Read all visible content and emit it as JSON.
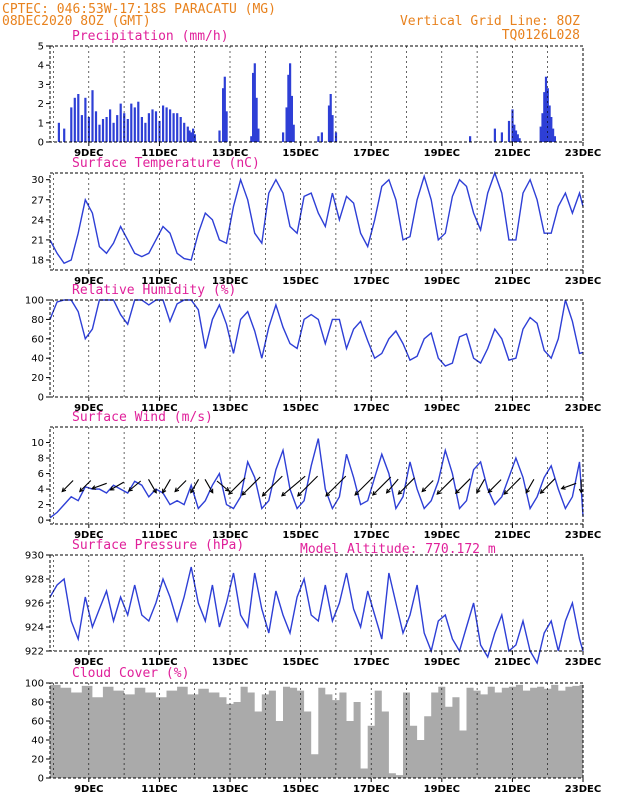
{
  "header": {
    "line1": "CPTEC:  046:53W-17:18S  PARACATU (MG)",
    "line2": "08DEC2020 8OZ (GMT)",
    "grid_note": "Vertical Grid Line: 8OZ",
    "code": "TQ0126L028"
  },
  "model_altitude": "Model Altitude: 770.172 m",
  "colors": {
    "header": "#e8821e",
    "panel_title": "#e0209a",
    "series": "#2e3fd6",
    "cloud": "#aaaaaa",
    "arrow": "#000000"
  },
  "chart_data": [
    {
      "type": "bar",
      "title": "Precipitation (mm/h)",
      "xlabels": [
        "9DEC",
        "11DEC",
        "13DEC",
        "15DEC",
        "17DEC",
        "19DEC",
        "21DEC",
        "23DEC"
      ],
      "ylim": [
        0,
        5
      ],
      "yticks": [
        "0",
        "1",
        "2",
        "3",
        "4",
        "5"
      ],
      "x": [
        8.15,
        8.3,
        8.5,
        8.6,
        8.7,
        8.8,
        8.9,
        9.0,
        9.1,
        9.2,
        9.3,
        9.4,
        9.5,
        9.6,
        9.7,
        9.8,
        9.9,
        10.0,
        10.1,
        10.2,
        10.3,
        10.4,
        10.5,
        10.6,
        10.7,
        10.8,
        10.9,
        11.0,
        11.1,
        11.2,
        11.3,
        11.4,
        11.5,
        11.6,
        11.7,
        11.8,
        11.85,
        11.9,
        11.95,
        12.0,
        12.7,
        12.8,
        12.85,
        12.9,
        13.6,
        13.65,
        13.7,
        13.75,
        13.8,
        14.5,
        14.6,
        14.65,
        14.7,
        14.75,
        14.8,
        15.5,
        15.6,
        15.8,
        15.85,
        15.9,
        16.0,
        19.8,
        20.5,
        20.7,
        20.9,
        21.0,
        21.05,
        21.1,
        21.15,
        21.2,
        21.8,
        21.85,
        21.9,
        21.95,
        22.0,
        22.05,
        22.1,
        22.15,
        22.2
      ],
      "values": [
        1.0,
        0.7,
        1.8,
        2.3,
        2.5,
        1.4,
        2.3,
        1.3,
        2.7,
        1.6,
        0.9,
        1.2,
        1.3,
        1.7,
        1.0,
        1.4,
        2.0,
        1.5,
        1.2,
        2.0,
        1.8,
        2.1,
        1.3,
        1.0,
        1.5,
        1.7,
        1.6,
        1.1,
        1.9,
        1.8,
        1.7,
        1.5,
        1.5,
        1.3,
        1.0,
        0.8,
        0.6,
        0.5,
        0.7,
        0.4,
        0.6,
        2.8,
        3.4,
        1.6,
        0.3,
        3.6,
        4.1,
        2.3,
        0.7,
        0.5,
        1.8,
        3.5,
        4.1,
        2.4,
        0.9,
        0.3,
        0.5,
        1.9,
        2.5,
        1.4,
        0.5,
        0.3,
        0.7,
        0.5,
        1.1,
        1.7,
        0.9,
        0.6,
        0.4,
        0.2,
        0.8,
        1.5,
        2.6,
        3.4,
        2.8,
        1.9,
        1.3,
        0.7,
        0.3
      ]
    },
    {
      "type": "line",
      "title": "Surface Temperature (nC)",
      "xlabels": [
        "9DEC",
        "11DEC",
        "13DEC",
        "15DEC",
        "17DEC",
        "19DEC",
        "21DEC",
        "23DEC"
      ],
      "ylim": [
        16.5,
        31
      ],
      "yticks": [
        "18",
        "21",
        "24",
        "27",
        "30"
      ],
      "x": [
        7.9,
        8.1,
        8.3,
        8.5,
        8.7,
        8.9,
        9.1,
        9.3,
        9.5,
        9.7,
        9.9,
        10.1,
        10.3,
        10.5,
        10.7,
        10.9,
        11.1,
        11.3,
        11.5,
        11.7,
        11.9,
        12.1,
        12.3,
        12.5,
        12.7,
        12.9,
        13.1,
        13.3,
        13.5,
        13.7,
        13.9,
        14.1,
        14.3,
        14.5,
        14.7,
        14.9,
        15.1,
        15.3,
        15.5,
        15.7,
        15.9,
        16.1,
        16.3,
        16.5,
        16.7,
        16.9,
        17.1,
        17.3,
        17.5,
        17.7,
        17.9,
        18.1,
        18.3,
        18.5,
        18.7,
        18.9,
        19.1,
        19.3,
        19.5,
        19.7,
        19.9,
        20.1,
        20.3,
        20.5,
        20.7,
        20.9,
        21.1,
        21.3,
        21.5,
        21.7,
        21.9,
        22.1,
        22.3,
        22.5,
        22.7,
        22.9,
        23.0
      ],
      "values": [
        21,
        19,
        17.5,
        18,
        22,
        27,
        25,
        20,
        19,
        20.5,
        23,
        21,
        19,
        18.5,
        19,
        21,
        23,
        22,
        19,
        18.2,
        18,
        22,
        25,
        24,
        21,
        20.5,
        26,
        30,
        27,
        22,
        20.5,
        28,
        30,
        28,
        23,
        22,
        27.5,
        28,
        25,
        23,
        28,
        24,
        27.5,
        26.5,
        22,
        20,
        24,
        29,
        30,
        27,
        21,
        21.5,
        27,
        30.5,
        27,
        21,
        22,
        27.5,
        30,
        29,
        25,
        22.5,
        28,
        31,
        28,
        21,
        21,
        28,
        30,
        27,
        22,
        22,
        26,
        28,
        25,
        28,
        26
      ]
    },
    {
      "type": "line",
      "title": "Relative Humidity (%)",
      "xlabels": [
        "9DEC",
        "11DEC",
        "13DEC",
        "15DEC",
        "17DEC",
        "19DEC",
        "21DEC",
        "23DEC"
      ],
      "ylim": [
        0,
        100
      ],
      "yticks": [
        "0",
        "20",
        "40",
        "60",
        "80",
        "100"
      ],
      "x": [
        7.9,
        8.1,
        8.3,
        8.5,
        8.7,
        8.9,
        9.1,
        9.3,
        9.5,
        9.7,
        9.9,
        10.1,
        10.3,
        10.5,
        10.7,
        10.9,
        11.1,
        11.3,
        11.5,
        11.7,
        11.9,
        12.1,
        12.3,
        12.5,
        12.7,
        12.9,
        13.1,
        13.3,
        13.5,
        13.7,
        13.9,
        14.1,
        14.3,
        14.5,
        14.7,
        14.9,
        15.1,
        15.3,
        15.5,
        15.7,
        15.9,
        16.1,
        16.3,
        16.5,
        16.7,
        16.9,
        17.1,
        17.3,
        17.5,
        17.7,
        17.9,
        18.1,
        18.3,
        18.5,
        18.7,
        18.9,
        19.1,
        19.3,
        19.5,
        19.7,
        19.9,
        20.1,
        20.3,
        20.5,
        20.7,
        20.9,
        21.1,
        21.3,
        21.5,
        21.7,
        21.9,
        22.1,
        22.3,
        22.5,
        22.7,
        22.9,
        23.0
      ],
      "values": [
        80,
        98,
        100,
        100,
        88,
        60,
        70,
        100,
        100,
        100,
        85,
        75,
        100,
        100,
        95,
        100,
        100,
        78,
        96,
        100,
        100,
        90,
        50,
        80,
        95,
        75,
        45,
        80,
        88,
        68,
        40,
        72,
        95,
        72,
        55,
        50,
        80,
        85,
        80,
        55,
        80,
        80,
        50,
        70,
        78,
        58,
        40,
        45,
        60,
        68,
        55,
        38,
        42,
        60,
        66,
        40,
        32,
        35,
        62,
        65,
        40,
        35,
        50,
        70,
        60,
        38,
        40,
        70,
        82,
        76,
        48,
        40,
        60,
        100,
        78,
        45,
        46
      ]
    },
    {
      "type": "line",
      "title": "Surface Wind (m/s)",
      "xlabels": [
        "9DEC",
        "11DEC",
        "13DEC",
        "15DEC",
        "17DEC",
        "19DEC",
        "21DEC",
        "23DEC"
      ],
      "ylim": [
        -0.5,
        12
      ],
      "yticks": [
        "0",
        "2",
        "4",
        "6",
        "8",
        "10"
      ],
      "x": [
        7.9,
        8.1,
        8.3,
        8.5,
        8.7,
        8.9,
        9.1,
        9.3,
        9.5,
        9.7,
        9.9,
        10.1,
        10.3,
        10.5,
        10.7,
        10.9,
        11.1,
        11.3,
        11.5,
        11.7,
        11.9,
        12.1,
        12.3,
        12.5,
        12.7,
        12.9,
        13.1,
        13.3,
        13.5,
        13.7,
        13.9,
        14.1,
        14.3,
        14.5,
        14.7,
        14.9,
        15.1,
        15.3,
        15.5,
        15.7,
        15.9,
        16.1,
        16.3,
        16.5,
        16.7,
        16.9,
        17.1,
        17.3,
        17.5,
        17.7,
        17.9,
        18.1,
        18.3,
        18.5,
        18.7,
        18.9,
        19.1,
        19.3,
        19.5,
        19.7,
        19.9,
        20.1,
        20.3,
        20.5,
        20.7,
        20.9,
        21.1,
        21.3,
        21.5,
        21.7,
        21.9,
        22.1,
        22.3,
        22.5,
        22.7,
        22.9,
        23.0
      ],
      "values": [
        0.3,
        1,
        2,
        3,
        2.5,
        4.3,
        4,
        4,
        3.5,
        4.5,
        4,
        3.5,
        5,
        4.5,
        3,
        4,
        3.5,
        2,
        2.5,
        2,
        4.5,
        1.5,
        2.5,
        4.5,
        6,
        2,
        1.5,
        3,
        7.5,
        5.5,
        1.5,
        2.5,
        6.5,
        9,
        4,
        1.5,
        2.5,
        7,
        10.5,
        4,
        1.5,
        3,
        8.5,
        5.5,
        2,
        2.5,
        5.5,
        8.5,
        6,
        1.5,
        3,
        7.5,
        4,
        1.5,
        2.5,
        5,
        9,
        6,
        1.5,
        2.5,
        6.5,
        7.5,
        4,
        2,
        3,
        5.5,
        8,
        5.5,
        1.5,
        3,
        5.5,
        7,
        4,
        1.5,
        3,
        7.5,
        0.5
      ]
    },
    {
      "type": "line",
      "title": "Surface Pressure (hPa)",
      "xlabels": [
        "9DEC",
        "11DEC",
        "13DEC",
        "15DEC",
        "17DEC",
        "19DEC",
        "21DEC",
        "23DEC"
      ],
      "ylim": [
        922,
        930
      ],
      "yticks": [
        "922",
        "924",
        "926",
        "928",
        "930"
      ],
      "x": [
        7.9,
        8.1,
        8.3,
        8.5,
        8.7,
        8.9,
        9.1,
        9.3,
        9.5,
        9.7,
        9.9,
        10.1,
        10.3,
        10.5,
        10.7,
        10.9,
        11.1,
        11.3,
        11.5,
        11.7,
        11.9,
        12.1,
        12.3,
        12.5,
        12.7,
        12.9,
        13.1,
        13.3,
        13.5,
        13.7,
        13.9,
        14.1,
        14.3,
        14.5,
        14.7,
        14.9,
        15.1,
        15.3,
        15.5,
        15.7,
        15.9,
        16.1,
        16.3,
        16.5,
        16.7,
        16.9,
        17.1,
        17.3,
        17.5,
        17.7,
        17.9,
        18.1,
        18.3,
        18.5,
        18.7,
        18.9,
        19.1,
        19.3,
        19.5,
        19.7,
        19.9,
        20.1,
        20.3,
        20.5,
        20.7,
        20.9,
        21.1,
        21.3,
        21.5,
        21.7,
        21.9,
        22.1,
        22.3,
        22.5,
        22.7,
        22.9,
        23.0
      ],
      "values": [
        926.5,
        927.5,
        928,
        924.5,
        923,
        926.5,
        924,
        925.5,
        927,
        924.5,
        926.5,
        925,
        927.5,
        925,
        924.5,
        926,
        928,
        926.5,
        924.5,
        926.5,
        929,
        926,
        924.5,
        927.5,
        924,
        926,
        928.5,
        925,
        924,
        928.5,
        925.5,
        923.5,
        927,
        925,
        923.5,
        926.5,
        928,
        925,
        924.5,
        927.5,
        924.5,
        926,
        928.5,
        925.5,
        924,
        927,
        925,
        923,
        928.5,
        926,
        923.5,
        925,
        927.5,
        923.5,
        922,
        924.5,
        925,
        923,
        922,
        924,
        926,
        922.5,
        921.5,
        923.5,
        925,
        922,
        922.5,
        924.5,
        922,
        921,
        923.5,
        924.5,
        922,
        924.5,
        926,
        923,
        922
      ]
    },
    {
      "type": "area",
      "title": "Cloud Cover (%)",
      "xlabels": [
        "9DEC",
        "11DEC",
        "13DEC",
        "15DEC",
        "17DEC",
        "19DEC",
        "21DEC",
        "23DEC"
      ],
      "ylim": [
        0,
        100
      ],
      "yticks": [
        "0",
        "20",
        "40",
        "60",
        "80",
        "100"
      ],
      "x": [
        7.9,
        8.2,
        8.5,
        8.8,
        9.1,
        9.4,
        9.7,
        10.0,
        10.3,
        10.6,
        10.9,
        11.2,
        11.5,
        11.8,
        12.1,
        12.4,
        12.7,
        12.9,
        13.1,
        13.3,
        13.5,
        13.7,
        13.9,
        14.1,
        14.3,
        14.5,
        14.7,
        14.9,
        15.1,
        15.3,
        15.5,
        15.7,
        15.9,
        16.1,
        16.3,
        16.5,
        16.7,
        16.9,
        17.1,
        17.3,
        17.5,
        17.7,
        17.9,
        18.1,
        18.3,
        18.5,
        18.7,
        18.9,
        19.1,
        19.3,
        19.5,
        19.7,
        19.9,
        20.1,
        20.3,
        20.5,
        20.7,
        20.9,
        21.1,
        21.3,
        21.5,
        21.7,
        21.9,
        22.1,
        22.3,
        22.5,
        22.7,
        22.9,
        23.0
      ],
      "values": [
        98,
        95,
        90,
        97,
        85,
        96,
        92,
        88,
        95,
        90,
        85,
        92,
        96,
        88,
        94,
        90,
        85,
        78,
        80,
        96,
        90,
        70,
        88,
        92,
        60,
        96,
        95,
        92,
        70,
        25,
        95,
        88,
        82,
        90,
        60,
        80,
        10,
        55,
        92,
        70,
        5,
        3,
        90,
        55,
        40,
        65,
        90,
        96,
        75,
        85,
        50,
        95,
        92,
        88,
        96,
        90,
        95,
        96,
        98,
        92,
        95,
        96,
        94,
        98,
        92,
        96,
        97,
        98,
        98
      ]
    }
  ],
  "wind_arrows": [
    {
      "x": 8.4,
      "dir": 225,
      "speed": 1.5
    },
    {
      "x": 8.9,
      "dir": 225,
      "speed": 1.5
    },
    {
      "x": 9.3,
      "dir": 200,
      "speed": 1.5
    },
    {
      "x": 9.8,
      "dir": 210,
      "speed": 1.5
    },
    {
      "x": 10.3,
      "dir": 220,
      "speed": 1.5
    },
    {
      "x": 10.8,
      "dir": 300,
      "speed": 1.5
    },
    {
      "x": 11.2,
      "dir": 240,
      "speed": 1.5
    },
    {
      "x": 11.6,
      "dir": 225,
      "speed": 1.5
    },
    {
      "x": 12.0,
      "dir": 240,
      "speed": 1.5
    },
    {
      "x": 12.4,
      "dir": 300,
      "speed": 1.5
    },
    {
      "x": 12.8,
      "dir": 320,
      "speed": 1.5
    },
    {
      "x": 13.2,
      "dir": 225,
      "speed": 3
    },
    {
      "x": 13.6,
      "dir": 225,
      "speed": 3.5
    },
    {
      "x": 14.2,
      "dir": 225,
      "speed": 4
    },
    {
      "x": 14.8,
      "dir": 220,
      "speed": 4.5
    },
    {
      "x": 15.2,
      "dir": 225,
      "speed": 4
    },
    {
      "x": 16.0,
      "dir": 225,
      "speed": 4
    },
    {
      "x": 16.8,
      "dir": 225,
      "speed": 3.5
    },
    {
      "x": 17.3,
      "dir": 225,
      "speed": 3.5
    },
    {
      "x": 17.6,
      "dir": 230,
      "speed": 2
    },
    {
      "x": 18.0,
      "dir": 225,
      "speed": 3
    },
    {
      "x": 18.6,
      "dir": 225,
      "speed": 1.5
    },
    {
      "x": 19.1,
      "dir": 225,
      "speed": 3
    },
    {
      "x": 19.6,
      "dir": 225,
      "speed": 2.5
    },
    {
      "x": 20.1,
      "dir": 240,
      "speed": 1.5
    },
    {
      "x": 20.5,
      "dir": 225,
      "speed": 2
    },
    {
      "x": 21.0,
      "dir": 225,
      "speed": 3
    },
    {
      "x": 21.5,
      "dir": 240,
      "speed": 1.5
    },
    {
      "x": 22.0,
      "dir": 225,
      "speed": 2.5
    },
    {
      "x": 22.6,
      "dir": 200,
      "speed": 1.5
    },
    {
      "x": 22.95,
      "dir": 270,
      "speed": 1
    }
  ]
}
